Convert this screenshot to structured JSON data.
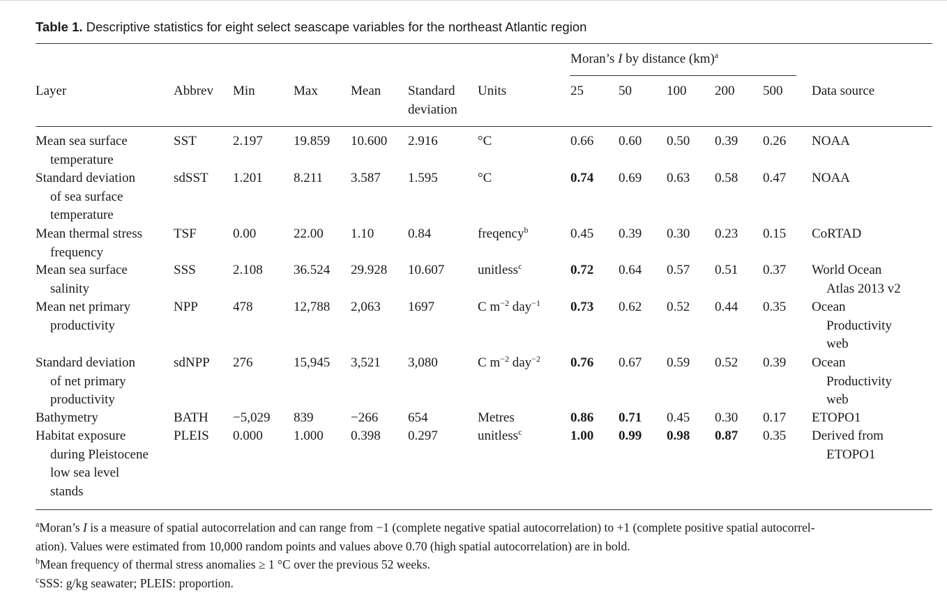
{
  "caption": {
    "label": "Table 1.",
    "text": " Descriptive statistics for eight select seascape variables for the northeast Atlantic region"
  },
  "header": {
    "moran_prefix": "Moran’s ",
    "moran_italic": "I",
    "moran_suffix": " by distance (km)",
    "moran_sup": "a",
    "layer": "Layer",
    "abbrev": "Abbrev",
    "min": "Min",
    "max": "Max",
    "mean": "Mean",
    "sd_line1": "Standard",
    "sd_line2": "deviation",
    "units": "Units",
    "d25": "25",
    "d50": "50",
    "d100": "100",
    "d200": "200",
    "d500": "500",
    "source": "Data source"
  },
  "rows": [
    {
      "layer": [
        "Mean sea surface",
        "temperature"
      ],
      "abbrev": "SST",
      "min": "2.197",
      "max": "19.859",
      "mean": "10.600",
      "sd": "2.916",
      "units": "°C",
      "units_sup": "",
      "moran": [
        "0.66",
        "0.60",
        "0.50",
        "0.39",
        "0.26"
      ],
      "bold": [
        false,
        false,
        false,
        false,
        false
      ],
      "source": [
        "NOAA"
      ]
    },
    {
      "layer": [
        "Standard deviation",
        "of sea surface",
        "temperature"
      ],
      "abbrev": "sdSST",
      "min": "1.201",
      "max": "8.211",
      "mean": "3.587",
      "sd": "1.595",
      "units": "°C",
      "units_sup": "",
      "moran": [
        "0.74",
        "0.69",
        "0.63",
        "0.58",
        "0.47"
      ],
      "bold": [
        true,
        false,
        false,
        false,
        false
      ],
      "source": [
        "NOAA"
      ]
    },
    {
      "layer": [
        "Mean thermal stress",
        "frequency"
      ],
      "abbrev": "TSF",
      "min": "0.00",
      "max": "22.00",
      "mean": "1.10",
      "sd": "0.84",
      "units": "freqency",
      "units_sup": "b",
      "moran": [
        "0.45",
        "0.39",
        "0.30",
        "0.23",
        "0.15"
      ],
      "bold": [
        false,
        false,
        false,
        false,
        false
      ],
      "source": [
        "CoRTAD"
      ]
    },
    {
      "layer": [
        "Mean sea surface",
        "salinity"
      ],
      "abbrev": "SSS",
      "min": "2.108",
      "max": "36.524",
      "mean": "29.928",
      "sd": "10.607",
      "units": "unitless",
      "units_sup": "c",
      "moran": [
        "0.72",
        "0.64",
        "0.57",
        "0.51",
        "0.37"
      ],
      "bold": [
        true,
        false,
        false,
        false,
        false
      ],
      "source": [
        "World Ocean",
        "Atlas 2013 v2"
      ]
    },
    {
      "layer": [
        "Mean net primary",
        "productivity"
      ],
      "abbrev": "NPP",
      "min": "478",
      "max": "12,788",
      "mean": "2,063",
      "sd": "1697",
      "units": "C m−2 day−1",
      "units_sup": "",
      "moran": [
        "0.73",
        "0.62",
        "0.52",
        "0.44",
        "0.35"
      ],
      "bold": [
        true,
        false,
        false,
        false,
        false
      ],
      "source": [
        "Ocean",
        "Productivity",
        "web"
      ]
    },
    {
      "layer": [
        "Standard deviation",
        "of net primary",
        "productivity"
      ],
      "abbrev": "sdNPP",
      "min": "276",
      "max": "15,945",
      "mean": "3,521",
      "sd": "3,080",
      "units": "C m−2 day−2",
      "units_sup": "",
      "moran": [
        "0.76",
        "0.67",
        "0.59",
        "0.52",
        "0.39"
      ],
      "bold": [
        true,
        false,
        false,
        false,
        false
      ],
      "source": [
        "Ocean",
        "Productivity",
        "web"
      ]
    },
    {
      "layer": [
        "Bathymetry"
      ],
      "abbrev": "BATH",
      "min": "−5,029",
      "max": "839",
      "mean": "−266",
      "sd": "654",
      "units": "Metres",
      "units_sup": "",
      "moran": [
        "0.86",
        "0.71",
        "0.45",
        "0.30",
        "0.17"
      ],
      "bold": [
        true,
        true,
        false,
        false,
        false
      ],
      "source": [
        "ETOPO1"
      ]
    },
    {
      "layer": [
        "Habitat exposure",
        "during Pleistocene",
        "low sea level",
        "stands"
      ],
      "abbrev": "PLEIS",
      "min": "0.000",
      "max": "1.000",
      "mean": "0.398",
      "sd": "0.297",
      "units": "unitless",
      "units_sup": "c",
      "moran": [
        "1.00",
        "0.99",
        "0.98",
        "0.87",
        "0.35"
      ],
      "bold": [
        true,
        true,
        true,
        true,
        false
      ],
      "source": [
        "Derived from",
        "ETOPO1"
      ]
    }
  ],
  "footnotes": {
    "a_sup": "a",
    "a_text1": "Moran’s ",
    "a_italic": "I",
    "a_text2": " is a measure of spatial autocorrelation and can range from −1 (complete negative spatial autocorrelation) to +1 (complete positive spatial autocorrel-",
    "a_text3": "ation). Values were estimated from 10,000 random points and values above 0.70 (high spatial autocorrelation) are in bold.",
    "b_sup": "b",
    "b_text": "Mean frequency of thermal stress anomalies ≥ 1 °C over the previous 52 weeks.",
    "c_sup": "c",
    "c_text": "SSS: g/kg seawater; PLEIS: proportion."
  }
}
